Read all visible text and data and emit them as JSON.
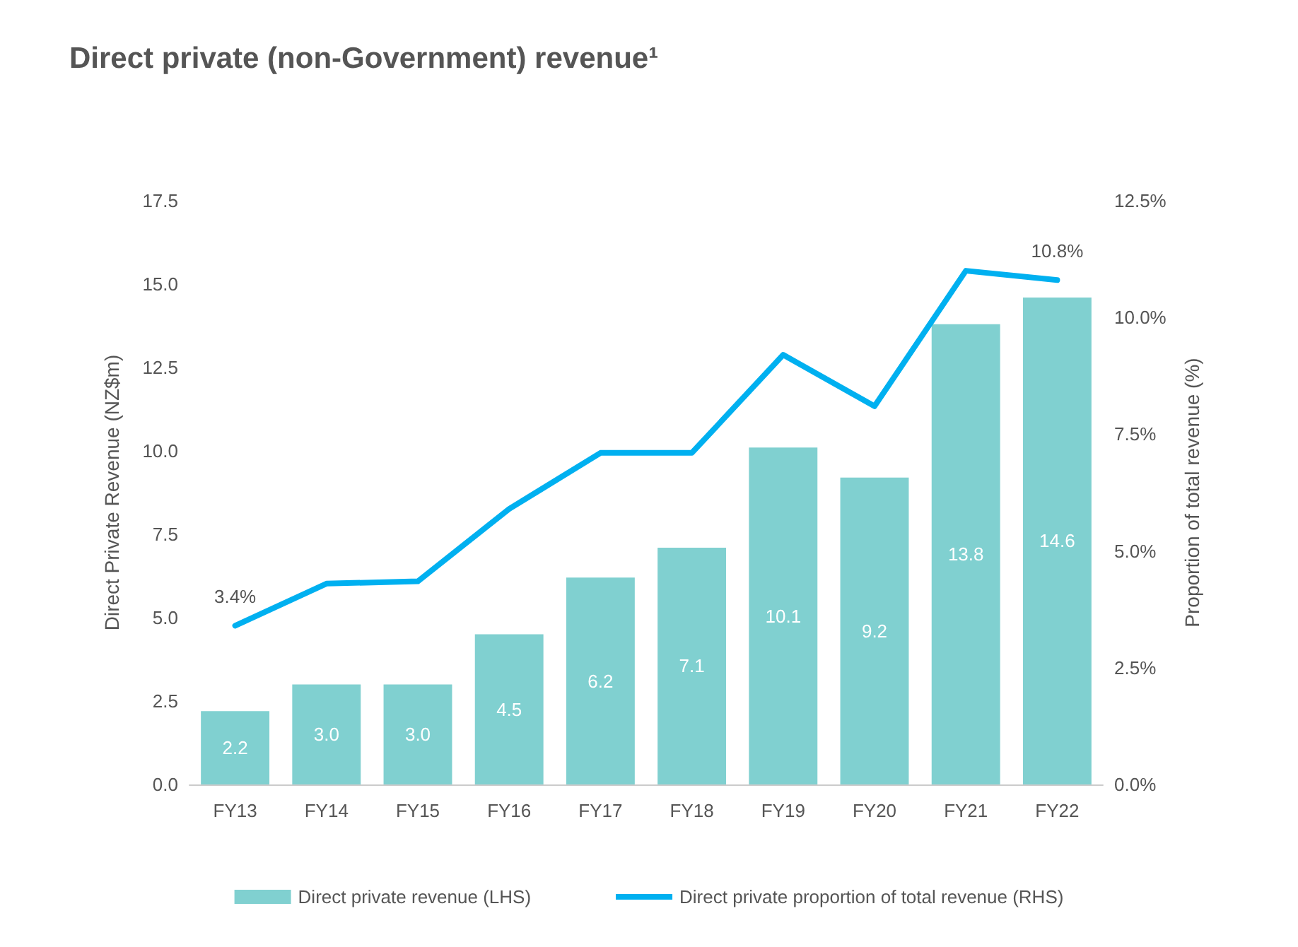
{
  "chart_data": {
    "type": "bar",
    "title": "Direct private (non-Government) revenue¹",
    "ylabel": "Direct Private Revenue (NZ$m)",
    "y2label": "Proportion of total revenue (%)",
    "categories": [
      "FY13",
      "FY14",
      "FY15",
      "FY16",
      "FY17",
      "FY18",
      "FY19",
      "FY20",
      "FY21",
      "FY22"
    ],
    "series": [
      {
        "name": "Direct private revenue (LHS)",
        "color": "#80d0d0",
        "values": [
          2.2,
          3.0,
          3.0,
          4.5,
          6.2,
          7.1,
          10.1,
          9.2,
          13.8,
          14.6
        ],
        "value_labels": [
          "2.2",
          "3.0",
          "3.0",
          "4.5",
          "6.2",
          "7.1",
          "10.1",
          "9.2",
          "13.8",
          "14.6"
        ]
      },
      {
        "name": "Direct private proportion of total revenue (RHS)",
        "type": "line",
        "axis": "y2",
        "color": "#00b0f0",
        "values": [
          3.4,
          4.3,
          4.35,
          5.9,
          7.1,
          7.1,
          9.2,
          8.1,
          11.0,
          10.8
        ],
        "value_labels": [
          "3.4%",
          null,
          null,
          null,
          null,
          null,
          null,
          null,
          null,
          "10.8%"
        ]
      }
    ],
    "ylim": [
      0,
      17.5
    ],
    "yticks": [
      {
        "value": 0,
        "label": "0.0"
      },
      {
        "value": 2.5,
        "label": "2.5"
      },
      {
        "value": 5,
        "label": "5.0"
      },
      {
        "value": 7.5,
        "label": "7.5"
      },
      {
        "value": 10,
        "label": "10.0"
      },
      {
        "value": 12.5,
        "label": "12.5"
      },
      {
        "value": 15,
        "label": "15.0"
      },
      {
        "value": 17.5,
        "label": "17.5"
      }
    ],
    "y2lim": [
      0,
      12.5
    ],
    "y2ticks": [
      {
        "value": 0,
        "label": "0.0%"
      },
      {
        "value": 2.5,
        "label": "2.5%"
      },
      {
        "value": 5,
        "label": "5.0%"
      },
      {
        "value": 7.5,
        "label": "7.5%"
      },
      {
        "value": 10,
        "label": "10.0%"
      },
      {
        "value": 12.5,
        "label": "12.5%"
      }
    ],
    "grid": false,
    "legend": "bottom",
    "marker": "none",
    "line_style": "solid"
  }
}
